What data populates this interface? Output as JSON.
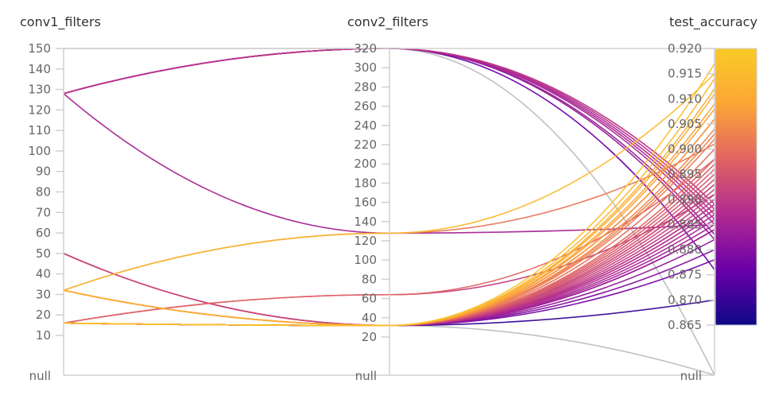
{
  "chart_data": {
    "type": "parallel-coordinates",
    "axes": [
      {
        "label": "conv1_filters",
        "range": [
          0,
          150
        ],
        "ticks": [
          "150",
          "140",
          "130",
          "120",
          "110",
          "100",
          "90",
          "80",
          "70",
          "60",
          "50",
          "40",
          "30",
          "20",
          "10"
        ],
        "tick_values": [
          150,
          140,
          130,
          120,
          110,
          100,
          90,
          80,
          70,
          60,
          50,
          40,
          30,
          20,
          10
        ],
        "has_null": true
      },
      {
        "label": "conv2_filters",
        "range": [
          20,
          320
        ],
        "ticks": [
          "320",
          "300",
          "280",
          "260",
          "240",
          "220",
          "200",
          "180",
          "160",
          "140",
          "120",
          "100",
          "80",
          "60",
          "40",
          "20"
        ],
        "tick_values": [
          320,
          300,
          280,
          260,
          240,
          220,
          200,
          180,
          160,
          140,
          120,
          100,
          80,
          60,
          40,
          20
        ],
        "has_null": true
      },
      {
        "label": "test_accuracy",
        "range": [
          0.865,
          0.92
        ],
        "ticks": [
          "0.920",
          "0.915",
          "0.910",
          "0.905",
          "0.900",
          "0.895",
          "0.890",
          "0.885",
          "0.880",
          "0.875",
          "0.870",
          "0.865"
        ],
        "tick_values": [
          0.92,
          0.915,
          0.91,
          0.905,
          0.9,
          0.895,
          0.89,
          0.885,
          0.88,
          0.875,
          0.87,
          0.865
        ],
        "has_null": true
      }
    ],
    "null_label": "null",
    "color_by": "test_accuracy",
    "colorscale": [
      "#0d0887",
      "#6a00a8",
      "#b12a90",
      "#e16462",
      "#fca636",
      "#f9cb26"
    ],
    "null_color": "#bdbdbd",
    "runs": [
      [
        128,
        320,
        0.889
      ],
      [
        128,
        320,
        0.886
      ],
      [
        128,
        320,
        0.883
      ],
      [
        128,
        320,
        0.888
      ],
      [
        128,
        320,
        0.876
      ],
      [
        128,
        320,
        0.882
      ],
      [
        128,
        320,
        0.885
      ],
      [
        128,
        320,
        0.887
      ],
      [
        128,
        128,
        0.885
      ],
      [
        150,
        320,
        null
      ],
      [
        50,
        32,
        0.893
      ],
      [
        50,
        32,
        0.889
      ],
      [
        50,
        32,
        0.884
      ],
      [
        32,
        128,
        0.915
      ],
      [
        32,
        128,
        0.901
      ],
      [
        32,
        32,
        0.912
      ],
      [
        32,
        32,
        0.909
      ],
      [
        32,
        32,
        0.906
      ],
      [
        32,
        32,
        0.903
      ],
      [
        32,
        32,
        0.897
      ],
      [
        32,
        32,
        0.893
      ],
      [
        32,
        32,
        0.888
      ],
      [
        16,
        64,
        0.898
      ],
      [
        16,
        64,
        0.891
      ],
      [
        16,
        32,
        0.917
      ],
      [
        16,
        32,
        0.914
      ],
      [
        16,
        32,
        0.911
      ],
      [
        16,
        32,
        0.908
      ],
      [
        16,
        32,
        0.906
      ],
      [
        16,
        32,
        0.904
      ],
      [
        16,
        32,
        0.902
      ],
      [
        16,
        32,
        0.9
      ],
      [
        16,
        32,
        0.898
      ],
      [
        16,
        32,
        0.896
      ],
      [
        16,
        32,
        0.895
      ],
      [
        16,
        32,
        0.894
      ],
      [
        16,
        32,
        0.892
      ],
      [
        16,
        32,
        0.891
      ],
      [
        16,
        32,
        0.89
      ],
      [
        16,
        32,
        0.889
      ],
      [
        16,
        32,
        0.888
      ],
      [
        16,
        32,
        0.887
      ],
      [
        16,
        32,
        0.886
      ],
      [
        16,
        32,
        0.885
      ],
      [
        16,
        32,
        0.884
      ],
      [
        16,
        32,
        0.882
      ],
      [
        16,
        32,
        0.88
      ],
      [
        16,
        32,
        0.878
      ],
      [
        16,
        32,
        0.87
      ],
      [
        16,
        32,
        null
      ]
    ]
  }
}
